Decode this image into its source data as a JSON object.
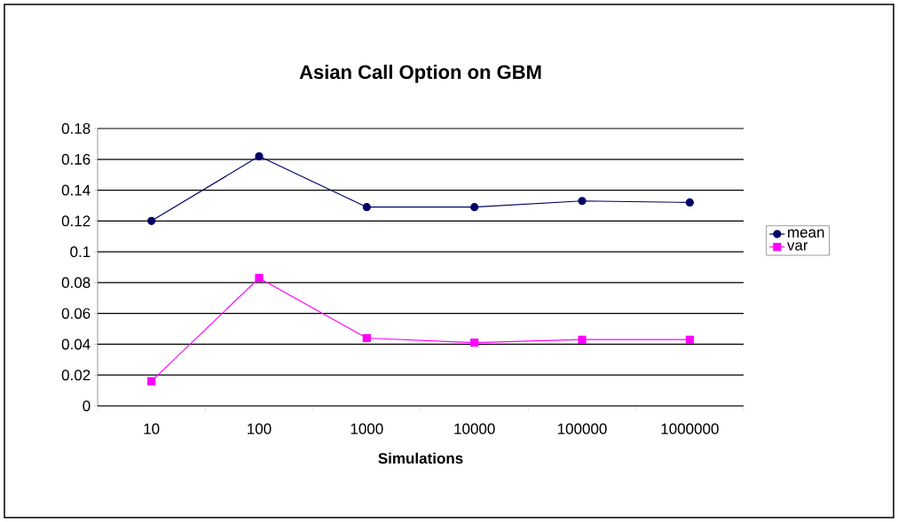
{
  "chart_data": {
    "type": "line",
    "title": "Asian Call Option on GBM",
    "xlabel": "Simulations",
    "categories": [
      "10",
      "100",
      "1000",
      "10000",
      "100000",
      "1000000"
    ],
    "series": [
      {
        "name": "mean",
        "color": "#000066",
        "marker": "circle",
        "values": [
          0.12,
          0.162,
          0.129,
          0.129,
          0.133,
          0.132
        ]
      },
      {
        "name": "var",
        "color": "#ff00ff",
        "marker": "square",
        "values": [
          0.016,
          0.083,
          0.044,
          0.041,
          0.043,
          0.043
        ]
      }
    ],
    "ylim": [
      0,
      0.18
    ],
    "yticks": [
      0,
      0.02,
      0.04,
      0.06,
      0.08,
      0.1,
      0.12,
      0.14,
      0.16,
      0.18
    ],
    "grid": "y",
    "legend": "right"
  }
}
